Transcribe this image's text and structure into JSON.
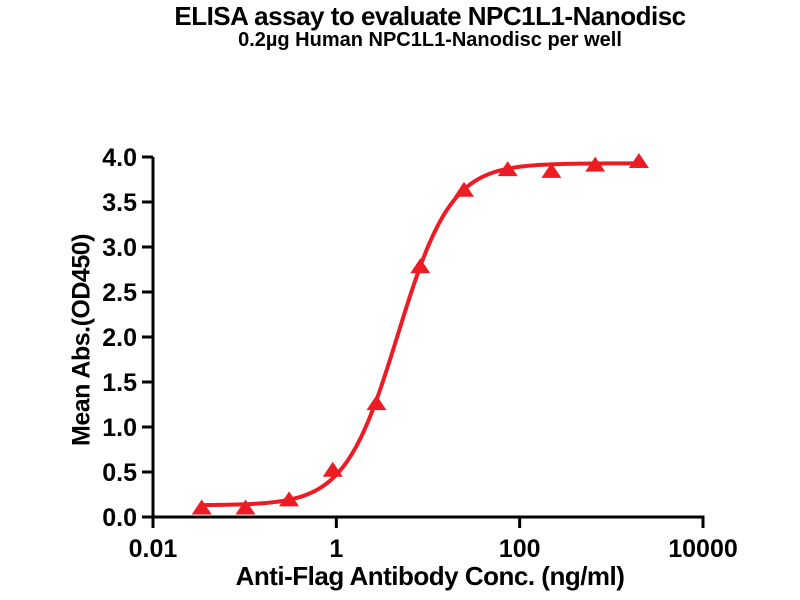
{
  "title": "ELISA assay to evaluate NPC1L1-Nanodisc",
  "subtitle": "0.2µg Human NPC1L1-Nanodisc per well",
  "colors": {
    "series_red": "#ED1C24",
    "axis_black": "#000000",
    "background": "#FFFFFF"
  },
  "chart_data": {
    "type": "scatter",
    "title": "ELISA assay to evaluate NPC1L1-Nanodisc",
    "subtitle": "0.2µg Human NPC1L1-Nanodisc per well",
    "xlabel": "Anti-Flag Antibody Conc. (ng/ml)",
    "ylabel": "Mean Abs.(OD450)",
    "x_scale": "log10",
    "xlim": [
      0.01,
      10000
    ],
    "ylim": [
      0.0,
      4.0
    ],
    "grid": false,
    "legend_position": "none",
    "marker": "triangle-up",
    "marker_color": "#ED1C24",
    "line_color": "#ED1C24",
    "x_ticks": [
      {
        "value": 0.01,
        "label": "0.01"
      },
      {
        "value": 1,
        "label": "1"
      },
      {
        "value": 100,
        "label": "100"
      },
      {
        "value": 10000,
        "label": "10000"
      }
    ],
    "y_ticks": [
      {
        "value": 0.0,
        "label": "0.0"
      },
      {
        "value": 0.5,
        "label": "0.5"
      },
      {
        "value": 1.0,
        "label": "1.0"
      },
      {
        "value": 1.5,
        "label": "1.5"
      },
      {
        "value": 2.0,
        "label": "2.0"
      },
      {
        "value": 2.5,
        "label": "2.5"
      },
      {
        "value": 3.0,
        "label": "3.0"
      },
      {
        "value": 3.5,
        "label": "3.5"
      },
      {
        "value": 4.0,
        "label": "4.0"
      }
    ],
    "series": [
      {
        "name": "Human NPC1L1-Nanodisc, 0.2µg per well",
        "x": [
          0.034,
          0.102,
          0.305,
          0.914,
          2.74,
          8.23,
          24.7,
          74.1,
          222,
          667,
          2000
        ],
        "y": [
          0.1,
          0.1,
          0.19,
          0.52,
          1.26,
          2.78,
          3.63,
          3.86,
          3.84,
          3.91,
          3.95
        ]
      }
    ],
    "curve_fit": {
      "model": "4PL",
      "bottom": 0.13,
      "top": 3.93,
      "ec50": 4.7,
      "hill": 1.5,
      "x_start": 0.034,
      "x_end": 2000
    }
  }
}
